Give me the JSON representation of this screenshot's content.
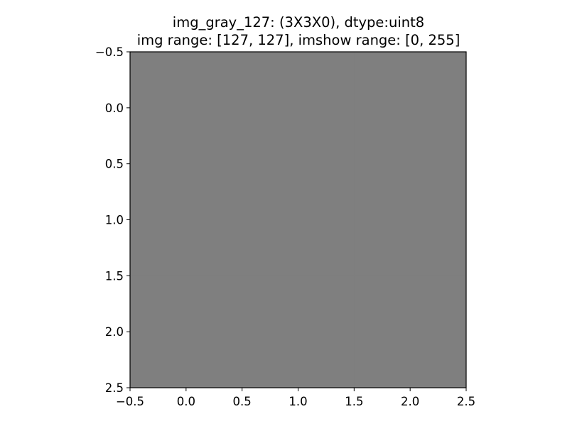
{
  "chart_data": {
    "type": "heatmap",
    "title_lines": [
      "img_gray_127: (3X3X0), dtype:uint8",
      "img range: [127, 127], imshow range: [0, 255]"
    ],
    "xlabel": "",
    "ylabel": "",
    "xlim": [
      -0.5,
      2.5
    ],
    "ylim": [
      2.5,
      -0.5
    ],
    "y_inverted": true,
    "xticks": [
      -0.5,
      0.0,
      0.5,
      1.0,
      1.5,
      2.0,
      2.5
    ],
    "yticks": [
      -0.5,
      0.0,
      0.5,
      1.0,
      1.5,
      2.0,
      2.5
    ],
    "xtick_labels": [
      "−0.5",
      "0.0",
      "0.5",
      "1.0",
      "1.5",
      "2.0",
      "2.5"
    ],
    "ytick_labels": [
      "−0.5",
      "0.0",
      "0.5",
      "1.0",
      "1.5",
      "2.0",
      "2.5"
    ],
    "pixel_values": [
      [
        127,
        127,
        127
      ],
      [
        127,
        127,
        127
      ],
      [
        127,
        127,
        127
      ]
    ],
    "vmin": 0,
    "vmax": 255,
    "colormap": "gray",
    "grid": false
  }
}
